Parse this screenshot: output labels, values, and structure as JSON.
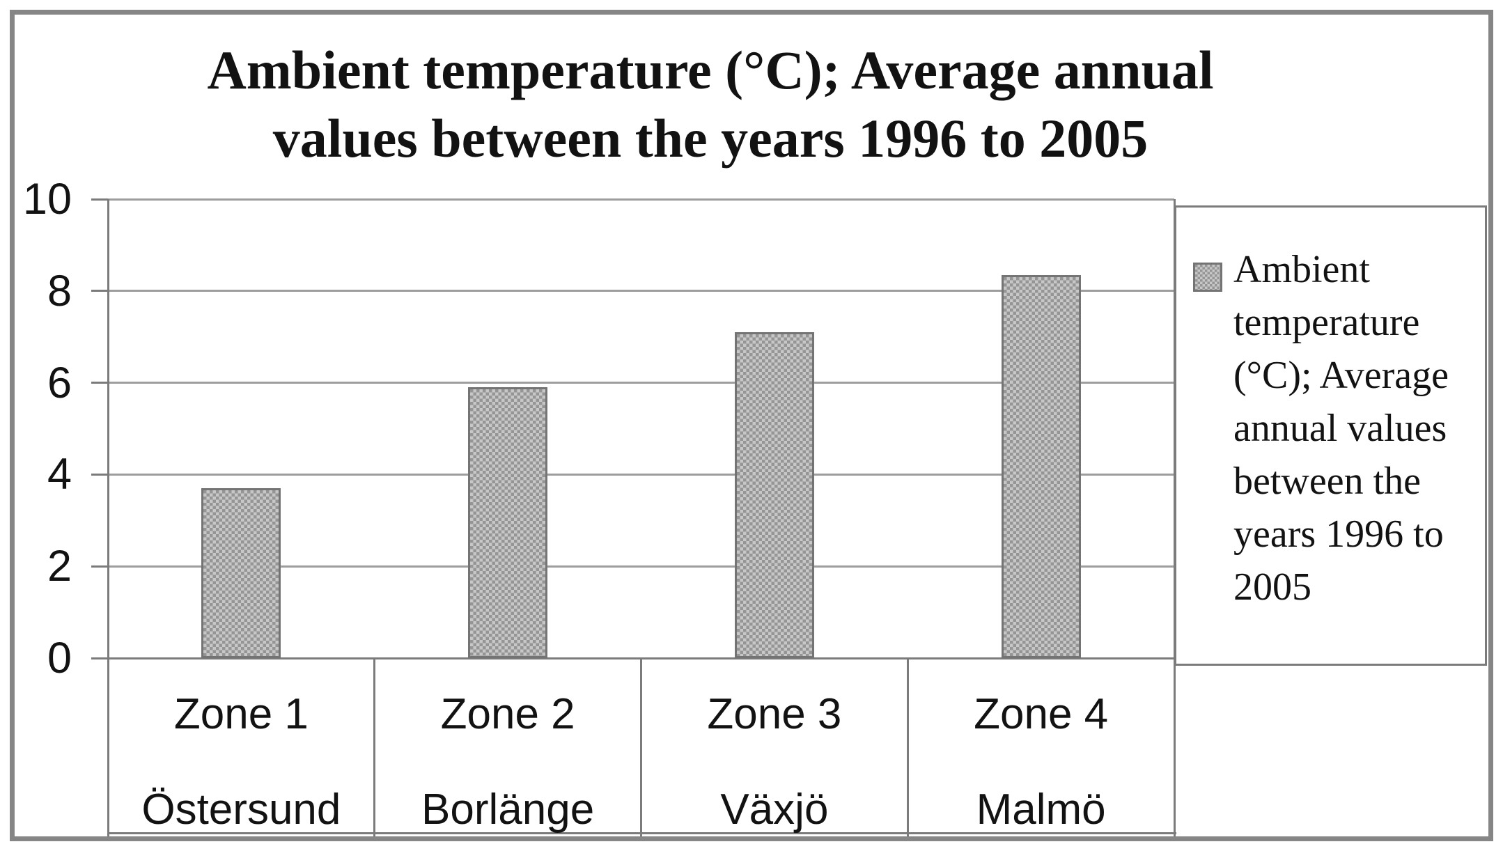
{
  "chart_data": {
    "type": "bar",
    "title": "Ambient temperature (°C); Average annual values between the years 1996 to 2005",
    "title_lines": [
      "Ambient temperature (°C); Average annual",
      "values between the years 1996 to 2005"
    ],
    "categories": [
      "Zone 1",
      "Zone 2",
      "Zone 3",
      "Zone 4"
    ],
    "category_cities": [
      "Östersund",
      "Borlänge",
      "Växjö",
      "Malmö"
    ],
    "series": [
      {
        "name": "Ambient temperature (°C); Average annual values between the years 1996 to 2005",
        "values": [
          3.7,
          5.9,
          7.1,
          8.35
        ]
      }
    ],
    "xlabel": "",
    "ylabel": "",
    "ylim": [
      0,
      10
    ],
    "y_ticks": [
      0,
      2,
      4,
      6,
      8,
      10
    ],
    "grid": true,
    "legend_position": "right",
    "legend_lines": [
      "Ambient",
      "temperature",
      "(°C); Average",
      "annual values",
      "between the",
      "years 1996 to",
      "2005"
    ]
  },
  "colors": {
    "bar_fill_light": "#c7c7c7",
    "bar_fill_dark": "#959595",
    "bar_border": "#747474",
    "gridline": "#9d9d9d",
    "axis": "#7b7b7b",
    "frame": "#868686",
    "text": "#121212",
    "background": "#ffffff"
  }
}
